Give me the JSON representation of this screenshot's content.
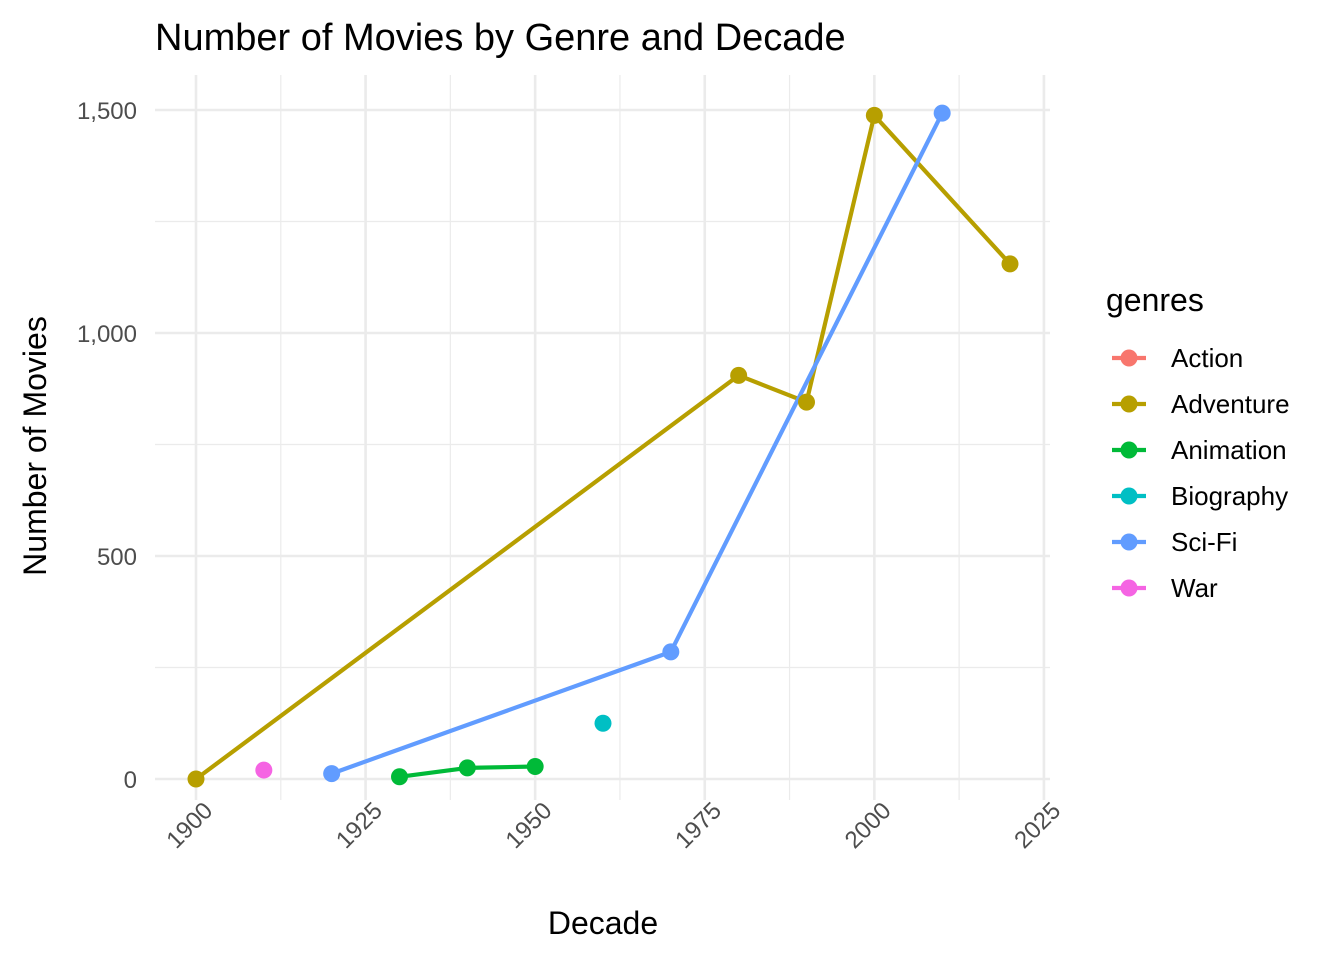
{
  "chart_data": {
    "type": "line",
    "title": "Number of Movies by Genre and Decade",
    "xlabel": "Decade",
    "ylabel": "Number of Movies",
    "xlim": [
      1900,
      2020
    ],
    "ylim": [
      0,
      1500
    ],
    "x_ticks": [
      1900,
      1925,
      1950,
      1975,
      2000,
      2025
    ],
    "x_tick_labels": [
      "1900",
      "1925",
      "1950",
      "1975",
      "2000",
      "2025"
    ],
    "y_ticks": [
      0,
      500,
      1000,
      1500
    ],
    "y_tick_labels": [
      "0",
      "500",
      "1,000",
      "1,500"
    ],
    "grid": true,
    "legend": {
      "title": "genres",
      "placement": "right"
    },
    "series": [
      {
        "name": "Action",
        "color": "#F8766D",
        "points": []
      },
      {
        "name": "Adventure",
        "color": "#B79F00",
        "points": [
          [
            1900,
            0
          ],
          [
            1980,
            905
          ],
          [
            1990,
            845
          ],
          [
            2000,
            1488
          ],
          [
            2020,
            1155
          ]
        ]
      },
      {
        "name": "Animation",
        "color": "#00BA38",
        "points": [
          [
            1930,
            5
          ],
          [
            1940,
            25
          ],
          [
            1950,
            28
          ]
        ]
      },
      {
        "name": "Biography",
        "color": "#00BFC4",
        "points": [
          [
            1960,
            125
          ]
        ]
      },
      {
        "name": "Sci-Fi",
        "color": "#619CFF",
        "points": [
          [
            1920,
            12
          ],
          [
            1970,
            285
          ],
          [
            2010,
            1493
          ]
        ]
      },
      {
        "name": "War",
        "color": "#F564E3",
        "points": [
          [
            1910,
            20
          ]
        ]
      }
    ]
  }
}
